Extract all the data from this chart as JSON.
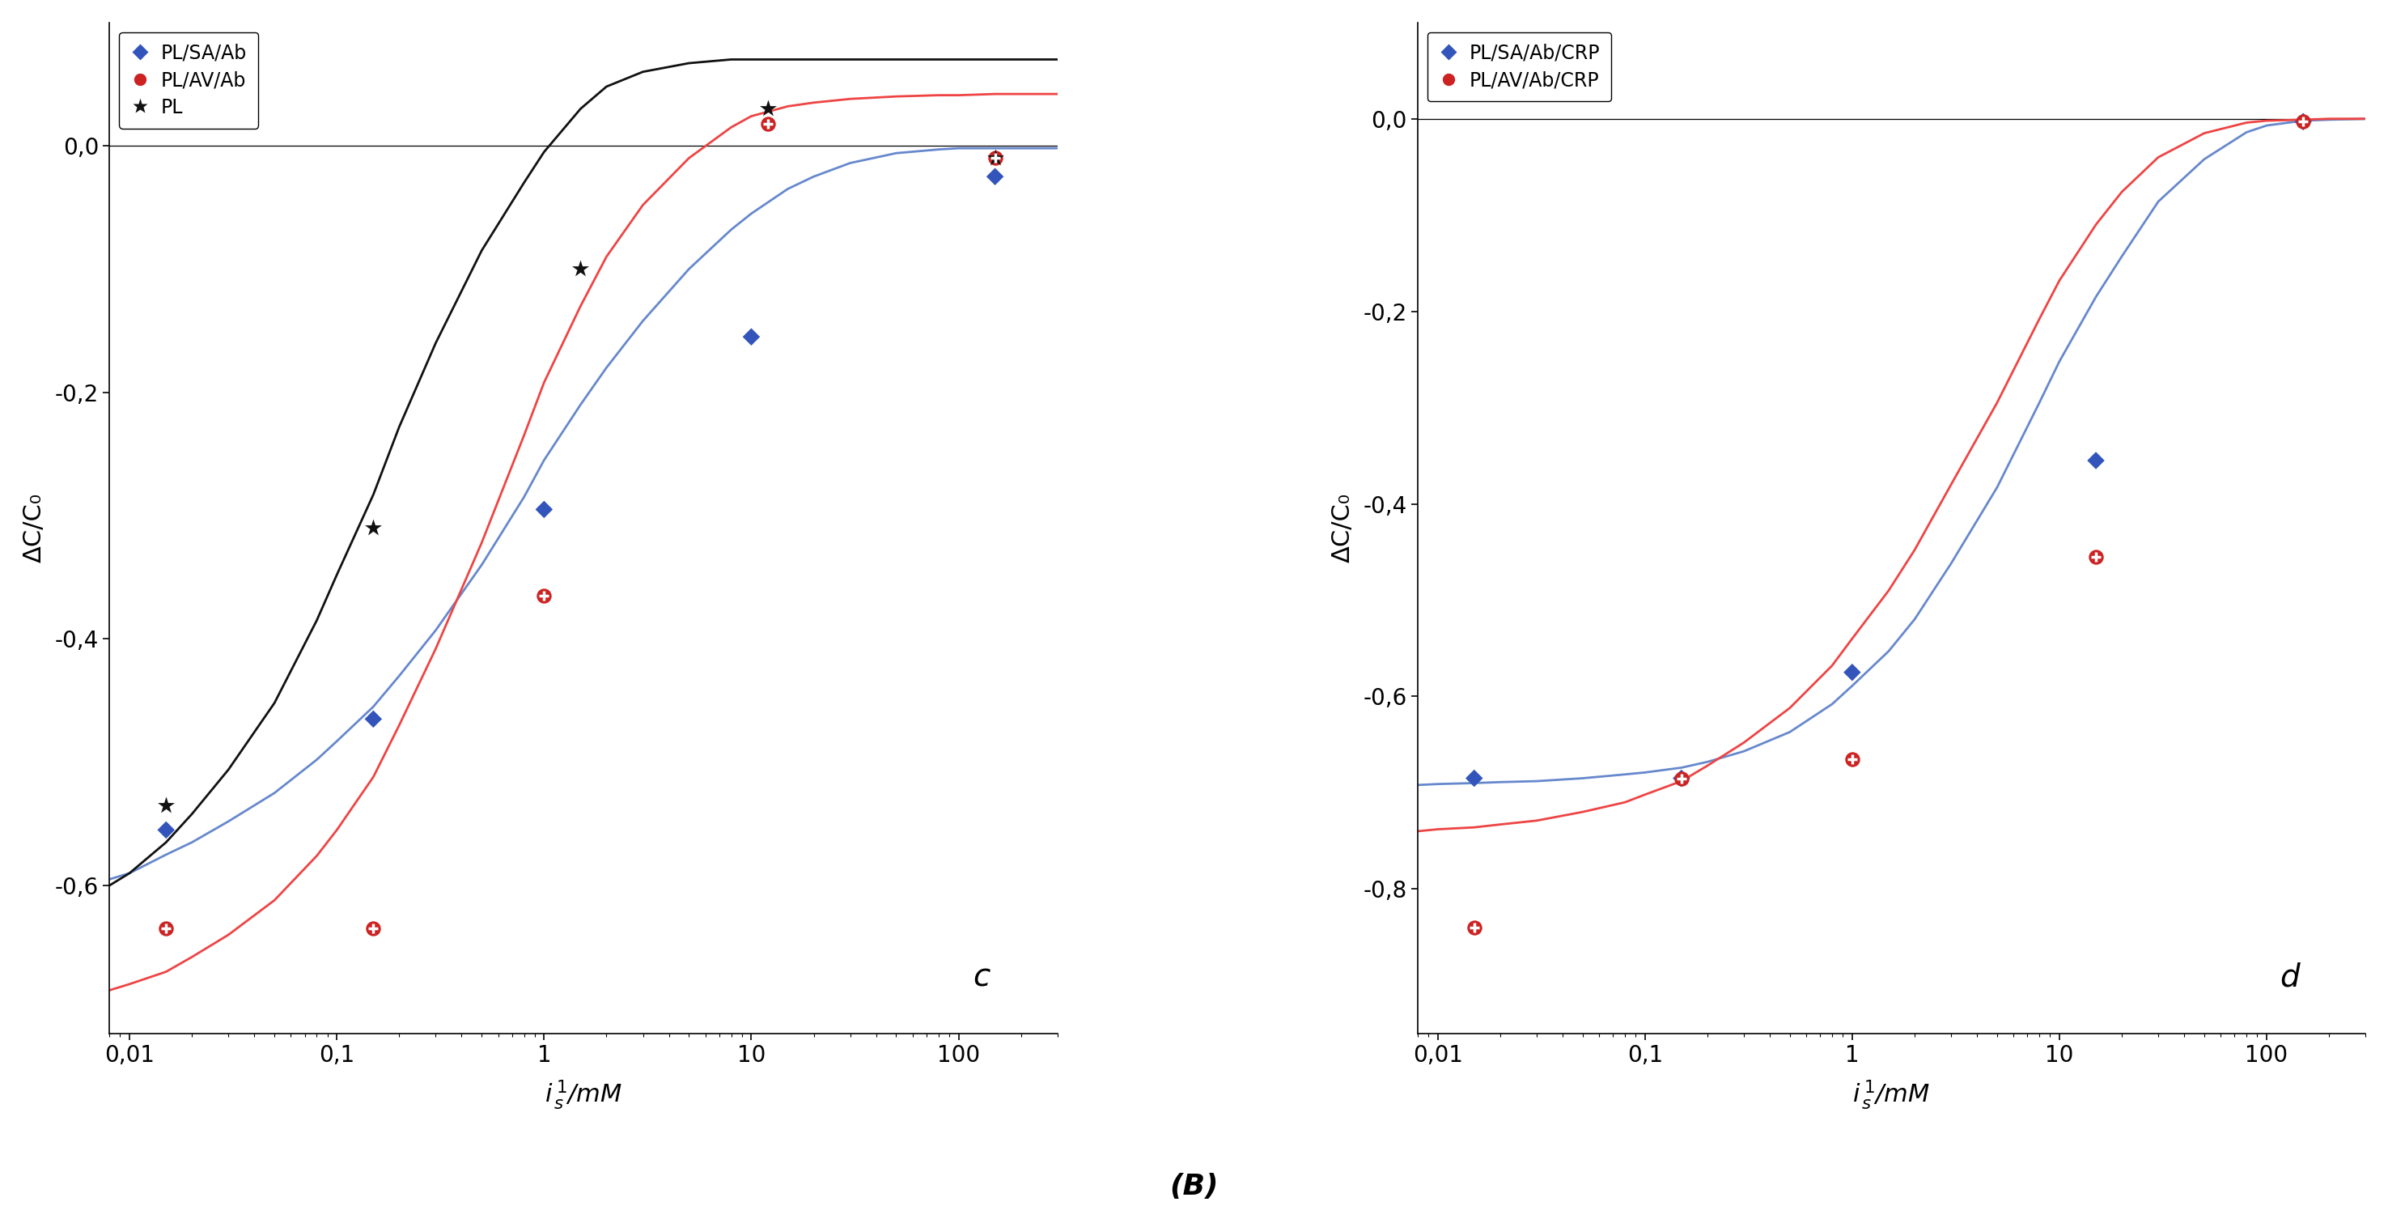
{
  "panel_c": {
    "title": "c",
    "series": [
      {
        "label": "PL/SA/Ab",
        "marker": "D",
        "marker_color": "#3355bb",
        "line_color": "#6688cc",
        "marker_size": 120,
        "points_x": [
          0.015,
          0.15,
          1.0,
          10.0,
          150.0
        ],
        "points_y": [
          -0.555,
          -0.465,
          -0.295,
          -0.155,
          -0.025
        ],
        "curve_x": [
          0.008,
          0.01,
          0.015,
          0.02,
          0.03,
          0.05,
          0.08,
          0.1,
          0.15,
          0.2,
          0.3,
          0.5,
          0.8,
          1.0,
          1.5,
          2.0,
          3.0,
          5.0,
          8.0,
          10.0,
          15.0,
          20.0,
          30.0,
          50.0,
          80.0,
          100.0,
          150.0,
          200.0,
          300.0
        ],
        "curve_y": [
          -0.595,
          -0.59,
          -0.575,
          -0.565,
          -0.548,
          -0.525,
          -0.498,
          -0.483,
          -0.455,
          -0.43,
          -0.393,
          -0.34,
          -0.285,
          -0.255,
          -0.21,
          -0.18,
          -0.142,
          -0.1,
          -0.068,
          -0.055,
          -0.035,
          -0.025,
          -0.014,
          -0.006,
          -0.003,
          -0.002,
          -0.002,
          -0.002,
          -0.002
        ]
      },
      {
        "label": "PL/AV/Ab",
        "marker": "circle_cross",
        "marker_color": "#cc2222",
        "line_color": "#ee4444",
        "marker_size": 150,
        "points_x": [
          0.015,
          0.15,
          1.0,
          12.0,
          150.0
        ],
        "points_y": [
          -0.635,
          -0.635,
          -0.365,
          0.018,
          -0.01
        ],
        "curve_x": [
          0.008,
          0.01,
          0.015,
          0.02,
          0.03,
          0.05,
          0.08,
          0.1,
          0.15,
          0.2,
          0.3,
          0.5,
          0.8,
          1.0,
          1.5,
          2.0,
          3.0,
          5.0,
          8.0,
          10.0,
          15.0,
          20.0,
          30.0,
          50.0,
          80.0,
          100.0,
          150.0,
          200.0,
          300.0
        ],
        "curve_y": [
          -0.685,
          -0.68,
          -0.67,
          -0.658,
          -0.64,
          -0.612,
          -0.576,
          -0.555,
          -0.512,
          -0.47,
          -0.408,
          -0.322,
          -0.235,
          -0.192,
          -0.13,
          -0.09,
          -0.048,
          -0.01,
          0.015,
          0.024,
          0.032,
          0.035,
          0.038,
          0.04,
          0.041,
          0.041,
          0.042,
          0.042,
          0.042
        ]
      },
      {
        "label": "PL",
        "marker": "star",
        "marker_color": "#111111",
        "line_color": "#111111",
        "marker_size": 250,
        "points_x": [
          0.015,
          0.15,
          1.5,
          12.0,
          150.0
        ],
        "points_y": [
          -0.535,
          -0.31,
          -0.1,
          0.03,
          -0.01
        ],
        "curve_x": [
          0.008,
          0.01,
          0.015,
          0.02,
          0.03,
          0.05,
          0.08,
          0.1,
          0.15,
          0.2,
          0.3,
          0.5,
          0.8,
          1.0,
          1.5,
          2.0,
          3.0,
          5.0,
          8.0,
          10.0,
          15.0,
          20.0,
          30.0,
          50.0,
          80.0,
          100.0,
          150.0,
          200.0,
          300.0
        ],
        "curve_y": [
          -0.6,
          -0.59,
          -0.565,
          -0.542,
          -0.506,
          -0.452,
          -0.385,
          -0.348,
          -0.283,
          -0.228,
          -0.16,
          -0.085,
          -0.03,
          -0.005,
          0.03,
          0.048,
          0.06,
          0.067,
          0.07,
          0.07,
          0.07,
          0.07,
          0.07,
          0.07,
          0.07,
          0.07,
          0.07,
          0.07,
          0.07
        ]
      }
    ],
    "xlim": [
      0.008,
      300
    ],
    "ylim": [
      -0.72,
      0.1
    ],
    "yticks": [
      0.0,
      -0.2,
      -0.4,
      -0.6
    ],
    "ylabel": "ΔC/C₀"
  },
  "panel_d": {
    "title": "d",
    "series": [
      {
        "label": "PL/SA/Ab/CRP",
        "marker": "D",
        "marker_color": "#3355bb",
        "line_color": "#6688cc",
        "marker_size": 120,
        "points_x": [
          0.015,
          0.15,
          1.0,
          15.0,
          150.0
        ],
        "points_y": [
          -0.685,
          -0.685,
          -0.575,
          -0.355,
          -0.003
        ],
        "curve_x": [
          0.008,
          0.01,
          0.015,
          0.02,
          0.03,
          0.05,
          0.08,
          0.1,
          0.15,
          0.2,
          0.3,
          0.5,
          0.8,
          1.0,
          1.5,
          2.0,
          3.0,
          5.0,
          8.0,
          10.0,
          15.0,
          20.0,
          30.0,
          50.0,
          80.0,
          100.0,
          150.0,
          200.0,
          300.0
        ],
        "curve_y": [
          -0.692,
          -0.691,
          -0.69,
          -0.689,
          -0.688,
          -0.685,
          -0.681,
          -0.679,
          -0.674,
          -0.668,
          -0.657,
          -0.637,
          -0.608,
          -0.589,
          -0.553,
          -0.52,
          -0.462,
          -0.383,
          -0.295,
          -0.252,
          -0.185,
          -0.143,
          -0.086,
          -0.042,
          -0.014,
          -0.007,
          -0.002,
          -0.001,
          0.0
        ]
      },
      {
        "label": "PL/AV/Ab/CRP",
        "marker": "circle_cross",
        "marker_color": "#cc2222",
        "line_color": "#ee4444",
        "marker_size": 150,
        "points_x": [
          0.015,
          0.15,
          1.0,
          15.0,
          150.0
        ],
        "points_y": [
          -0.84,
          -0.685,
          -0.665,
          -0.455,
          -0.003
        ],
        "curve_x": [
          0.008,
          0.01,
          0.015,
          0.02,
          0.03,
          0.05,
          0.08,
          0.1,
          0.15,
          0.2,
          0.3,
          0.5,
          0.8,
          1.0,
          1.5,
          2.0,
          3.0,
          5.0,
          8.0,
          10.0,
          15.0,
          20.0,
          30.0,
          50.0,
          80.0,
          100.0,
          150.0,
          200.0,
          300.0
        ],
        "curve_y": [
          -0.74,
          -0.738,
          -0.736,
          -0.733,
          -0.729,
          -0.72,
          -0.71,
          -0.702,
          -0.688,
          -0.672,
          -0.648,
          -0.612,
          -0.568,
          -0.54,
          -0.49,
          -0.448,
          -0.38,
          -0.295,
          -0.208,
          -0.168,
          -0.11,
          -0.076,
          -0.04,
          -0.015,
          -0.004,
          -0.002,
          -0.001,
          0.0,
          0.0
        ]
      }
    ],
    "xlim": [
      0.008,
      300
    ],
    "ylim": [
      -0.95,
      0.1
    ],
    "yticks": [
      0.0,
      -0.2,
      -0.4,
      -0.6,
      -0.8
    ],
    "ylabel": "ΔC/C₀"
  },
  "bottom_label": "(B)",
  "background_color": "#ffffff",
  "tick_label_fontsize": 20,
  "ylabel_fontsize": 22,
  "xlabel_fontsize": 22,
  "legend_fontsize": 17,
  "panel_label_fontsize": 28
}
